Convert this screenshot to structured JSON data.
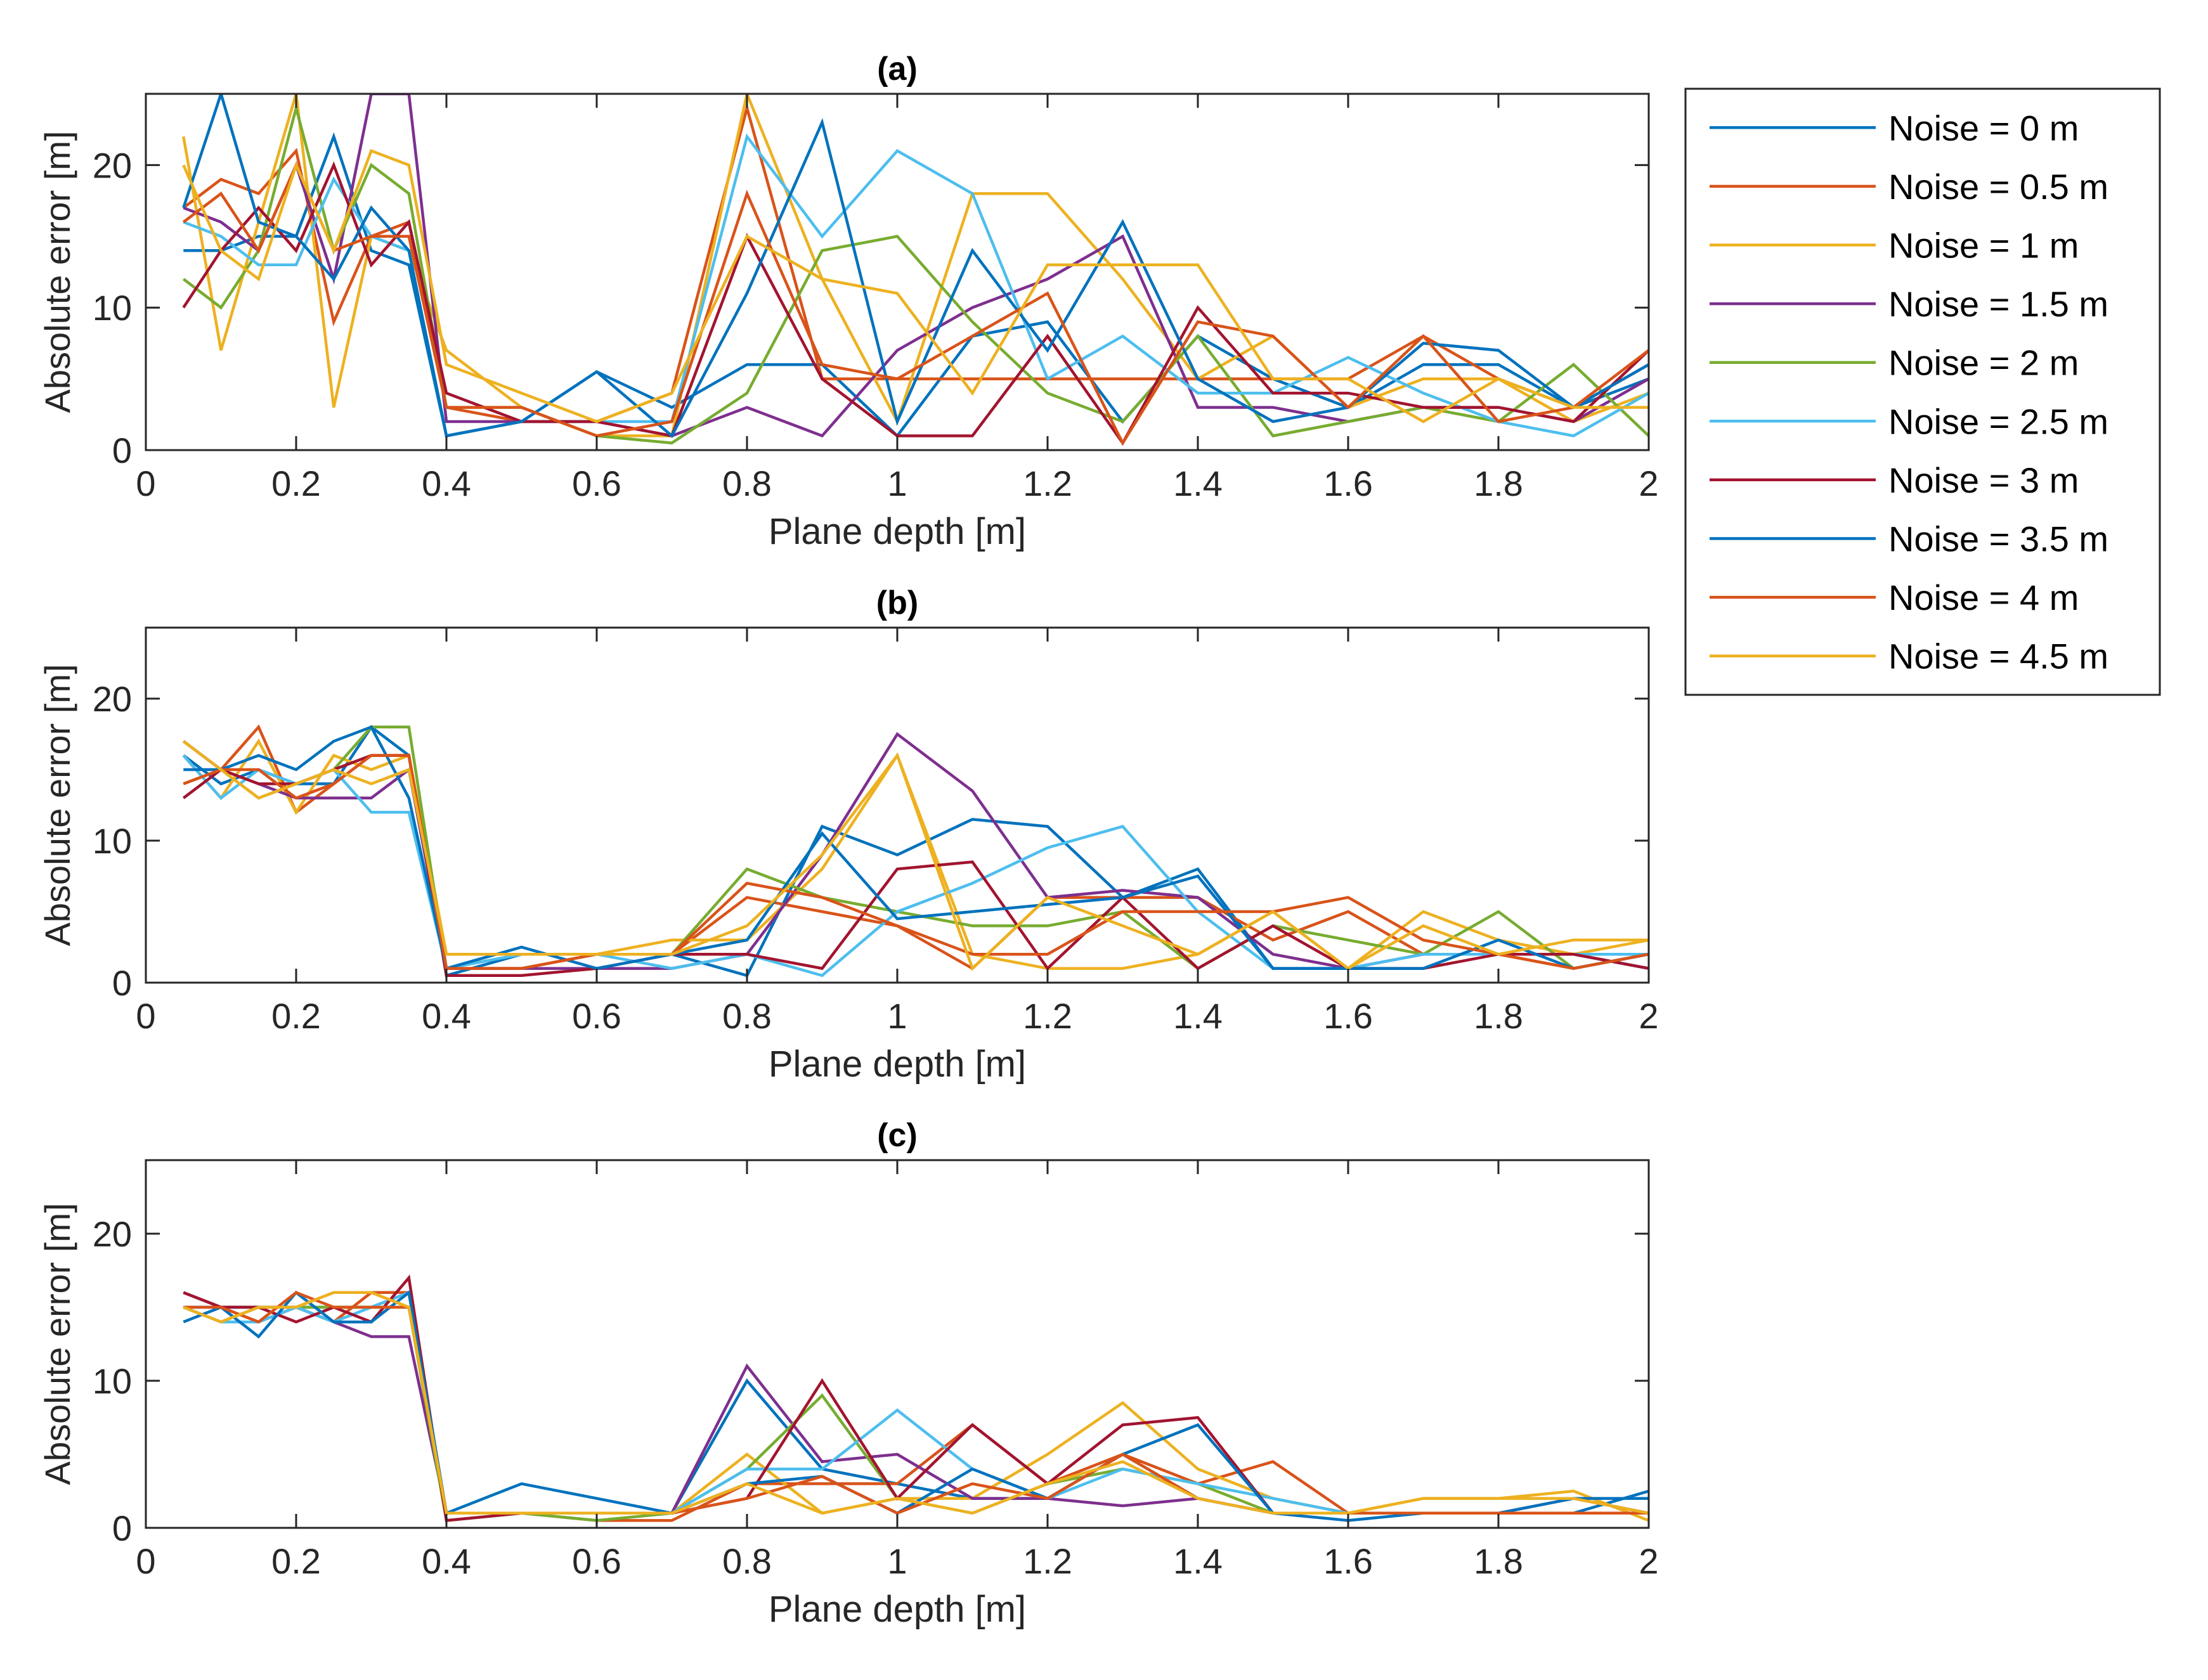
{
  "chart_data": {
    "type": "line",
    "layout": "three stacked subplots with shared legend at top-right",
    "legend": [
      {
        "name": "Noise = 0 m",
        "color": "#0072BD"
      },
      {
        "name": "Noise = 0.5 m",
        "color": "#D95319"
      },
      {
        "name": "Noise = 1 m",
        "color": "#EDB120"
      },
      {
        "name": "Noise = 1.5 m",
        "color": "#7E2F8E"
      },
      {
        "name": "Noise = 2 m",
        "color": "#77AC30"
      },
      {
        "name": "Noise = 2.5 m",
        "color": "#4DBEEE"
      },
      {
        "name": "Noise = 3 m",
        "color": "#A2142F"
      },
      {
        "name": "Noise = 3.5 m",
        "color": "#0072BD"
      },
      {
        "name": "Noise = 4 m",
        "color": "#D95319"
      },
      {
        "name": "Noise = 4.5 m",
        "color": "#EDB120"
      }
    ],
    "x": [
      0.05,
      0.1,
      0.15,
      0.2,
      0.25,
      0.3,
      0.35,
      0.4,
      0.5,
      0.6,
      0.7,
      0.8,
      0.9,
      1.0,
      1.1,
      1.2,
      1.3,
      1.4,
      1.5,
      1.6,
      1.7,
      1.8,
      1.9,
      2.0
    ],
    "xlim": [
      0,
      2
    ],
    "ylim": [
      0,
      25
    ],
    "xticks": [
      "0",
      "0.2",
      "0.4",
      "0.6",
      "0.8",
      "1",
      "1.2",
      "1.4",
      "1.6",
      "1.8",
      "2"
    ],
    "yticks": [
      "0",
      "10",
      "20"
    ],
    "subplots": [
      {
        "title": "(a)",
        "xlabel": "Plane depth [m]",
        "ylabel": "Absolute error [m]",
        "series": [
          {
            "name": "Noise = 0 m",
            "values": [
              14,
              14,
              15,
              15,
              22,
              14,
              13,
              1,
              2,
              5.5,
              3,
              6,
              6,
              1,
              8,
              9,
              2,
              8,
              5,
              3,
              6,
              6,
              3,
              5
            ]
          },
          {
            "name": "Noise = 0.5 m",
            "values": [
              17,
              19,
              18,
              21,
              9,
              15,
              16,
              3,
              2,
              2,
              4,
              24,
              5,
              5,
              5,
              5,
              5,
              5,
              5,
              5,
              8,
              5,
              3,
              6
            ]
          },
          {
            "name": "Noise = 1 m",
            "values": [
              22,
              7,
              16,
              25,
              3,
              15,
              14,
              7,
              3,
              1,
              1,
              25,
              12,
              2,
              18,
              18,
              12,
              5,
              8,
              3,
              5,
              5,
              2,
              4
            ]
          },
          {
            "name": "Noise = 1.5 m",
            "values": [
              17,
              16,
              14,
              20,
              12,
              27,
              25,
              2,
              2,
              2,
              1,
              3,
              1,
              7,
              10,
              12,
              15,
              3,
              3,
              2,
              3,
              3,
              2,
              5
            ]
          },
          {
            "name": "Noise = 2 m",
            "values": [
              12,
              10,
              14,
              24,
              14,
              20,
              18,
              3,
              3,
              1,
              0.5,
              4,
              14,
              15,
              9,
              4,
              2,
              8,
              1,
              2,
              3,
              2,
              6,
              1
            ]
          },
          {
            "name": "Noise = 2.5 m",
            "values": [
              16,
              15,
              13,
              13,
              19,
              15,
              14,
              1,
              2,
              2,
              2,
              22,
              15,
              21,
              18,
              5,
              8,
              4,
              4,
              6.5,
              4,
              2,
              1,
              4
            ]
          },
          {
            "name": "Noise = 3 m",
            "values": [
              10,
              14,
              17,
              14,
              20,
              13,
              16,
              4,
              2,
              2,
              1,
              15,
              5,
              1,
              1,
              8,
              0.5,
              10,
              4,
              4,
              3,
              3,
              2,
              7
            ]
          },
          {
            "name": "Noise = 3.5 m",
            "values": [
              17,
              27,
              16,
              15,
              12,
              17,
              14,
              1,
              2,
              5.5,
              1,
              11,
              23,
              2,
              14,
              7,
              16,
              5,
              2,
              3,
              7.5,
              7,
              3,
              6
            ]
          },
          {
            "name": "Noise = 4 m",
            "values": [
              16,
              18,
              14,
              20,
              14,
              15,
              15,
              3,
              3,
              1,
              2,
              18,
              6,
              5,
              8,
              11,
              0.5,
              9,
              8,
              3,
              8,
              2,
              3,
              7
            ]
          },
          {
            "name": "Noise = 4.5 m",
            "values": [
              20,
              14,
              12,
              20,
              14,
              21,
              20,
              6,
              4,
              2,
              4,
              15,
              12,
              11,
              4,
              13,
              13,
              13,
              5,
              5,
              2,
              5,
              3,
              3
            ]
          }
        ]
      },
      {
        "title": "(b)",
        "xlabel": "Plane depth [m]",
        "ylabel": "Absolute error [m]",
        "series": [
          {
            "name": "Noise = 0 m",
            "values": [
              16,
              14,
              15,
              14,
              14,
              18,
              16,
              0.5,
              2,
              2,
              2,
              0.5,
              11,
              9,
              11.5,
              11,
              6,
              8,
              1,
              1,
              2,
              2,
              2,
              1
            ]
          },
          {
            "name": "Noise = 0.5 m",
            "values": [
              17,
              15,
              18,
              12,
              14,
              16,
              16,
              1,
              1,
              2,
              2,
              6,
              5,
              4,
              1,
              6,
              6,
              6,
              3,
              5,
              2,
              2,
              1,
              2
            ]
          },
          {
            "name": "Noise = 1 m",
            "values": [
              16,
              13,
              17,
              12,
              16,
              15,
              16,
              2,
              2,
              2,
              3,
              3,
              8,
              16,
              2,
              1,
              1,
              2,
              5,
              1,
              5,
              3,
              2,
              3
            ]
          },
          {
            "name": "Noise = 1.5 m",
            "values": [
              17,
              15,
              14,
              13,
              13,
              13,
              15,
              1,
              1,
              1,
              1,
              2,
              9,
              17.5,
              13.5,
              6,
              6.5,
              6,
              2,
              1,
              2,
              2,
              2,
              1
            ]
          },
          {
            "name": "Noise = 2 m",
            "values": [
              14,
              15,
              13,
              14,
              15,
              18,
              18,
              1,
              2,
              2,
              2,
              8,
              6,
              5,
              4,
              4,
              5,
              1,
              4,
              3,
              2,
              5,
              1,
              2
            ]
          },
          {
            "name": "Noise = 2.5 m",
            "values": [
              16,
              13,
              15,
              14,
              15,
              12,
              12,
              1,
              2,
              2,
              1,
              2,
              0.5,
              5,
              7,
              9.5,
              11,
              5,
              1,
              1,
              2,
              2,
              2,
              2
            ]
          },
          {
            "name": "Noise = 3 m",
            "values": [
              13,
              15,
              14,
              14,
              15,
              16,
              16,
              0.5,
              0.5,
              1,
              2,
              2,
              1,
              8,
              8.5,
              1,
              6,
              1,
              4,
              1,
              1,
              2,
              2,
              1
            ]
          },
          {
            "name": "Noise = 3.5 m",
            "values": [
              15,
              15,
              16,
              15,
              17,
              18,
              13,
              1,
              2.5,
              1,
              2,
              3,
              10.5,
              4.5,
              5,
              5.5,
              6,
              7.5,
              1,
              1,
              1,
              3,
              1,
              2
            ]
          },
          {
            "name": "Noise = 4 m",
            "values": [
              14,
              15,
              15,
              13,
              14,
              16,
              16,
              1,
              1,
              2,
              2,
              7,
              6,
              4,
              2,
              2,
              5,
              5,
              5,
              6,
              3,
              2,
              1,
              2
            ]
          },
          {
            "name": "Noise = 4.5 m",
            "values": [
              17,
              15,
              13,
              14,
              15,
              14,
              15,
              2,
              2,
              2,
              2,
              4,
              9,
              16,
              1,
              6,
              4,
              2,
              5,
              1,
              4,
              2,
              3,
              3
            ]
          }
        ]
      },
      {
        "title": "(c)",
        "xlabel": "Plane depth [m]",
        "ylabel": "Absolute error [m]",
        "series": [
          {
            "name": "Noise = 0 m",
            "values": [
              15,
              15,
              15,
              15,
              15,
              15,
              16,
              1,
              3,
              2,
              1,
              10,
              4,
              3,
              2,
              2,
              5,
              2,
              1,
              1,
              1,
              1,
              1,
              2.5
            ]
          },
          {
            "name": "Noise = 0.5 m",
            "values": [
              16,
              15,
              14,
              15,
              14,
              16,
              16,
              1,
              1,
              0.5,
              0.5,
              3,
              3,
              3,
              7,
              3,
              5,
              3,
              4.5,
              1,
              1,
              1,
              1,
              1
            ]
          },
          {
            "name": "Noise = 1 m",
            "values": [
              15,
              14,
              15,
              15,
              16,
              16,
              15,
              1,
              1,
              1,
              1,
              5,
              1,
              2,
              2,
              5,
              8.5,
              4,
              2,
              1,
              2,
              2,
              2.5,
              0.5
            ]
          },
          {
            "name": "Noise = 1.5 m",
            "values": [
              16,
              15,
              15,
              15,
              14,
              13,
              13,
              1,
              1,
              1,
              1,
              11,
              4.5,
              5,
              2,
              2,
              1.5,
              2,
              1,
              1,
              1,
              1,
              1,
              1
            ]
          },
          {
            "name": "Noise = 2 m",
            "values": [
              15,
              14,
              15,
              15,
              15,
              15,
              15,
              0.5,
              1,
              0.5,
              1,
              4,
              9,
              2,
              1,
              3,
              4,
              3,
              1,
              1,
              1,
              1,
              1,
              1
            ]
          },
          {
            "name": "Noise = 2.5 m",
            "values": [
              15,
              14,
              14,
              15,
              14,
              15,
              16,
              1,
              1,
              1,
              1,
              4,
              4,
              8,
              4,
              2,
              4,
              3,
              2,
              1,
              1,
              1,
              1,
              1
            ]
          },
          {
            "name": "Noise = 3 m",
            "values": [
              16,
              15,
              15,
              14,
              15,
              14,
              17,
              0.5,
              1,
              1,
              1,
              2,
              10,
              2,
              7,
              3,
              7,
              7.5,
              1,
              1,
              1,
              1,
              2,
              1
            ]
          },
          {
            "name": "Noise = 3.5 m",
            "values": [
              14,
              15,
              13,
              16,
              14,
              14,
              16,
              1,
              1,
              1,
              1,
              3,
              3.5,
              1,
              4,
              2,
              5,
              7,
              1,
              0.5,
              1,
              1,
              2,
              2
            ]
          },
          {
            "name": "Noise = 4 m",
            "values": [
              15,
              15,
              14,
              16,
              15,
              15,
              15,
              1,
              1,
              1,
              1,
              2,
              3.5,
              1,
              3,
              2,
              5,
              2,
              1,
              1,
              1,
              1,
              1,
              1
            ]
          },
          {
            "name": "Noise = 4.5 m",
            "values": [
              15,
              14,
              15,
              15,
              16,
              16,
              15,
              1,
              1,
              1,
              1,
              3,
              1,
              2,
              1,
              3,
              4.5,
              2,
              1,
              1,
              2,
              2,
              2,
              1
            ]
          }
        ]
      }
    ]
  }
}
